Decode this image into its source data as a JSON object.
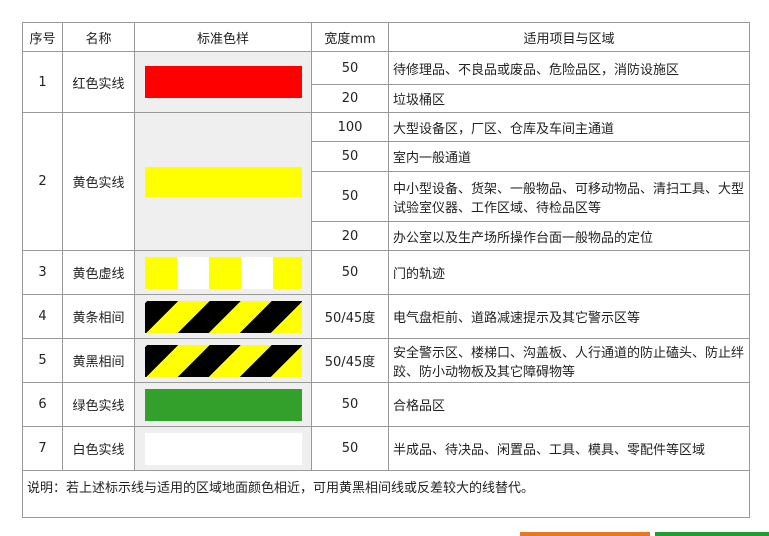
{
  "headers": [
    "序号",
    "名称",
    "标准色样",
    "宽度mm",
    "适用项目与区域"
  ],
  "rows": [
    {
      "no": "1",
      "name": "红色实线",
      "swatch": "red-solid",
      "widths": [
        "50",
        "20"
      ],
      "areas": [
        "待修理品、不良品或废品、危险品区，消防设施区",
        "垃圾桶区"
      ]
    },
    {
      "no": "2",
      "name": "黄色实线",
      "swatch": "yellow-solid",
      "widths": [
        "100",
        "50",
        "50",
        "20"
      ],
      "areas": [
        "大型设备区，厂区、仓库及车间主通道",
        "室内一般通道",
        "中小型设备、货架、一般物品、可移动物品、清扫工具、大型试验室仪器、工作区域、待检品区等",
        "办公室以及生产场所操作台面一般物品的定位"
      ]
    },
    {
      "no": "3",
      "name": "黄色虚线",
      "swatch": "yellow-dashed",
      "widths": [
        "50"
      ],
      "areas": [
        "门的轨迹"
      ]
    },
    {
      "no": "4",
      "name": "黄条相间",
      "swatch": "yellow-black-stripe",
      "widths": [
        "50/45度"
      ],
      "areas": [
        "电气盘柜前、道路减速提示及其它警示区等"
      ]
    },
    {
      "no": "5",
      "name": "黄黑相间",
      "swatch": "yellow-black-stripe",
      "widths": [
        "50/45度"
      ],
      "areas": [
        "安全警示区、楼梯口、沟盖板、人行通道的防止磕头、防止绊跤、防小动物板及其它障碍物等"
      ]
    },
    {
      "no": "6",
      "name": "绿色实线",
      "swatch": "green-solid",
      "widths": [
        "50"
      ],
      "areas": [
        "合格品区"
      ]
    },
    {
      "no": "7",
      "name": "白色实线",
      "swatch": "white-solid",
      "widths": [
        "50"
      ],
      "areas": [
        "半成品、待决品、闲置品、工具、模具、零配件等区域"
      ]
    }
  ],
  "note": "说明：若上述标示线与适用的区域地面颜色相近，可用黄黑相间线或反差较大的线替代。",
  "colors": {
    "red": "#ff0000",
    "yellow": "#ffff00",
    "black": "#000000",
    "green": "#33a02c",
    "white": "#ffffff",
    "orange": "#e87722",
    "accent_green": "#1e9e2e"
  }
}
